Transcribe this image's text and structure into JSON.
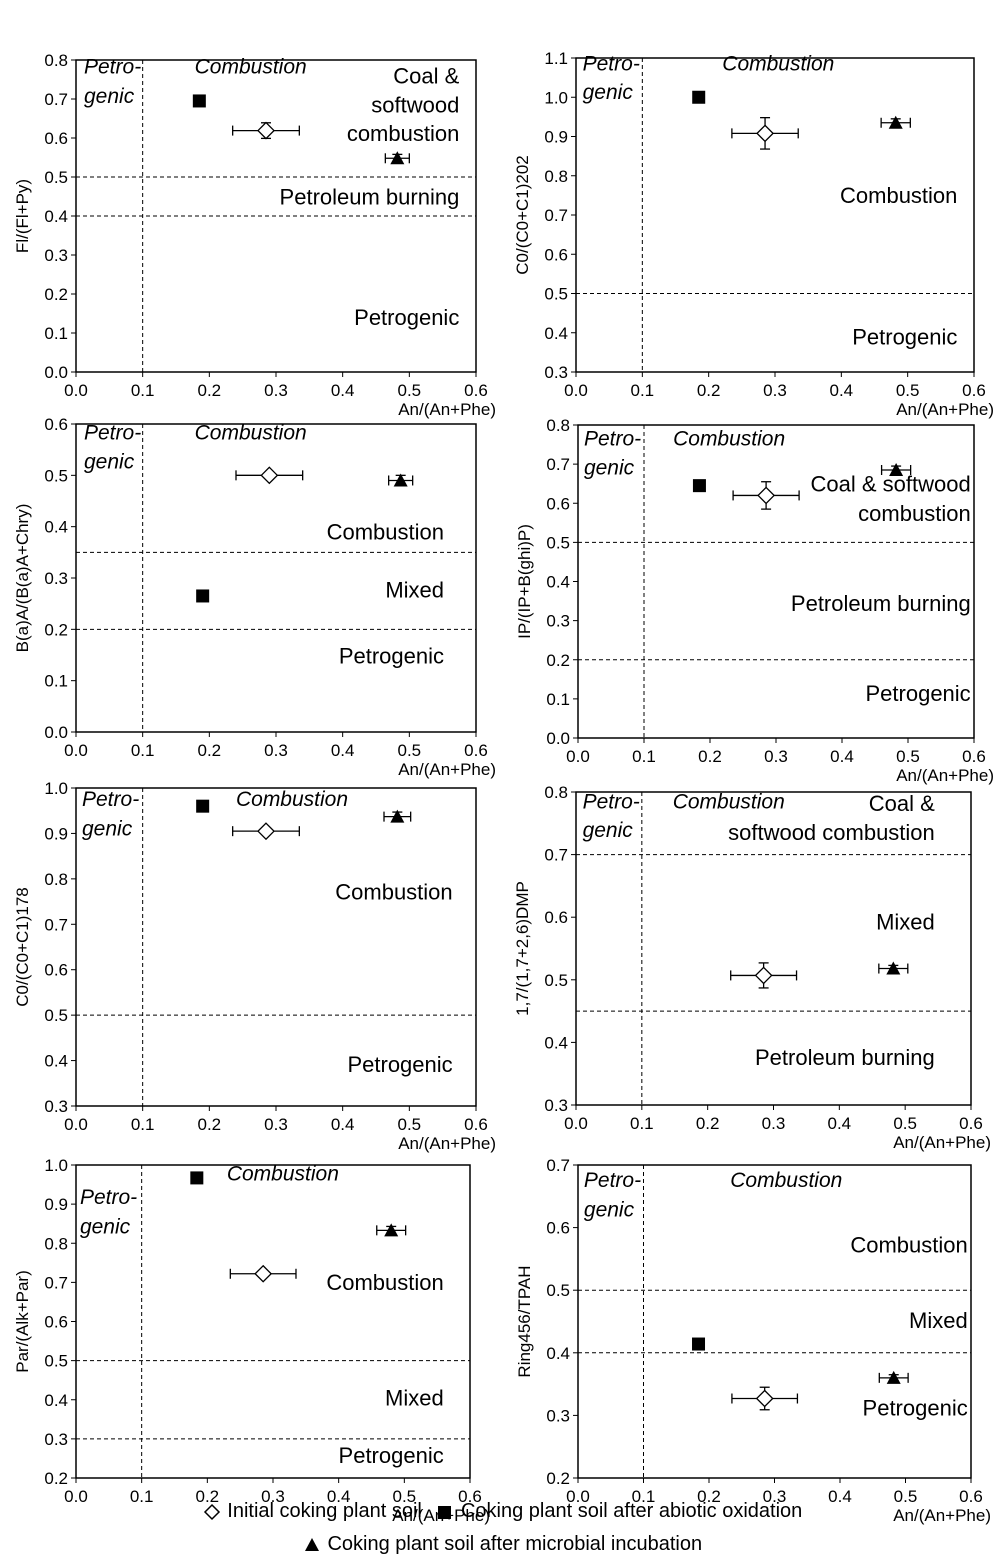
{
  "chart_data": [
    {
      "type": "scatter",
      "xlabel": "An/(An+Phe)",
      "ylabel": "Fl/(Fl+Py)",
      "xlim": [
        0,
        0.6
      ],
      "ylim": [
        0,
        0.8
      ],
      "xticks": [
        "0.0",
        "0.1",
        "0.2",
        "0.3",
        "0.4",
        "0.5",
        "0.6"
      ],
      "yticks": [
        "0.0",
        "0.1",
        "0.2",
        "0.3",
        "0.4",
        "0.5",
        "0.6",
        "0.7",
        "0.8"
      ],
      "vlines": [
        0.1
      ],
      "hlines": [
        0.5,
        0.4
      ],
      "points": [
        {
          "series": "initial",
          "x": 0.285,
          "y": 0.619,
          "xerr": 0.05,
          "yerr": 0.02
        },
        {
          "series": "abiotic",
          "x": 0.185,
          "y": 0.695,
          "xerr": 0,
          "yerr": 0
        },
        {
          "series": "microbial",
          "x": 0.482,
          "y": 0.548,
          "xerr": 0.018,
          "yerr": 0.01
        }
      ],
      "annotations": [
        {
          "text": "Petro-",
          "x": 0.012,
          "y": 0.765,
          "anchor": "start",
          "italic": true
        },
        {
          "text": "genic",
          "x": 0.012,
          "y": 0.69,
          "anchor": "start",
          "italic": true
        },
        {
          "text": "Combustion",
          "x": 0.262,
          "y": 0.765,
          "anchor": "middle",
          "italic": true
        },
        {
          "text": "Coal &",
          "x": 0.575,
          "y": 0.74,
          "anchor": "end",
          "italic": false
        },
        {
          "text": "softwood",
          "x": 0.575,
          "y": 0.666,
          "anchor": "end",
          "italic": false
        },
        {
          "text": "combustion",
          "x": 0.575,
          "y": 0.592,
          "anchor": "end",
          "italic": false
        },
        {
          "text": "Petroleum burning",
          "x": 0.575,
          "y": 0.43,
          "anchor": "end",
          "italic": false
        },
        {
          "text": "Petrogenic",
          "x": 0.575,
          "y": 0.12,
          "anchor": "end",
          "italic": false
        }
      ]
    },
    {
      "type": "scatter",
      "xlabel": "An/(An+Phe)",
      "ylabel": "C0/(C0+C1)202",
      "xlim": [
        0,
        0.6
      ],
      "ylim": [
        0.3,
        1.1
      ],
      "xticks": [
        "0.0",
        "0.1",
        "0.2",
        "0.3",
        "0.4",
        "0.5",
        "0.6"
      ],
      "yticks": [
        "0.3",
        "0.4",
        "0.5",
        "0.6",
        "0.7",
        "0.8",
        "0.9",
        "1.0",
        "1.1"
      ],
      "vlines": [
        0.1
      ],
      "hlines": [
        0.5
      ],
      "points": [
        {
          "series": "initial",
          "x": 0.285,
          "y": 0.908,
          "xerr": 0.05,
          "yerr": 0.04
        },
        {
          "series": "abiotic",
          "x": 0.185,
          "y": 1.0,
          "xerr": 0,
          "yerr": 0
        },
        {
          "series": "microbial",
          "x": 0.482,
          "y": 0.935,
          "xerr": 0.022,
          "yerr": 0.01
        }
      ],
      "annotations": [
        {
          "text": "Petro-",
          "x": 0.01,
          "y": 1.068,
          "anchor": "start",
          "italic": true
        },
        {
          "text": "genic",
          "x": 0.01,
          "y": 0.995,
          "anchor": "start",
          "italic": true
        },
        {
          "text": "Combustion",
          "x": 0.305,
          "y": 1.068,
          "anchor": "middle",
          "italic": true
        },
        {
          "text": "Combustion",
          "x": 0.575,
          "y": 0.73,
          "anchor": "end",
          "italic": false
        },
        {
          "text": "Petrogenic",
          "x": 0.575,
          "y": 0.37,
          "anchor": "end",
          "italic": false
        }
      ]
    },
    {
      "type": "scatter",
      "xlabel": "An/(An+Phe)",
      "ylabel": "B(a)A/(B(a)A+Chry)",
      "xlim": [
        0,
        0.6
      ],
      "ylim": [
        0,
        0.6
      ],
      "xticks": [
        "0.0",
        "0.1",
        "0.2",
        "0.3",
        "0.4",
        "0.5",
        "0.6"
      ],
      "yticks": [
        "0.0",
        "0.1",
        "0.2",
        "0.3",
        "0.4",
        "0.5",
        "0.6"
      ],
      "vlines": [
        0.1
      ],
      "hlines": [
        0.35,
        0.2
      ],
      "points": [
        {
          "series": "initial",
          "x": 0.29,
          "y": 0.5,
          "xerr": 0.05,
          "yerr": 0
        },
        {
          "series": "abiotic",
          "x": 0.19,
          "y": 0.265,
          "xerr": 0,
          "yerr": 0
        },
        {
          "series": "microbial",
          "x": 0.487,
          "y": 0.49,
          "xerr": 0.018,
          "yerr": 0.01
        }
      ],
      "annotations": [
        {
          "text": "Petro-",
          "x": 0.012,
          "y": 0.57,
          "anchor": "start",
          "italic": true
        },
        {
          "text": "genic",
          "x": 0.012,
          "y": 0.513,
          "anchor": "start",
          "italic": true
        },
        {
          "text": "Combustion",
          "x": 0.262,
          "y": 0.57,
          "anchor": "middle",
          "italic": true
        },
        {
          "text": "Combustion",
          "x": 0.552,
          "y": 0.375,
          "anchor": "end",
          "italic": false
        },
        {
          "text": "Mixed",
          "x": 0.552,
          "y": 0.262,
          "anchor": "end",
          "italic": false
        },
        {
          "text": "Petrogenic",
          "x": 0.552,
          "y": 0.133,
          "anchor": "end",
          "italic": false
        }
      ]
    },
    {
      "type": "scatter",
      "xlabel": "An/(An+Phe)",
      "ylabel": "IP/(IP+B(ghi)P)",
      "xlim": [
        0,
        0.6
      ],
      "ylim": [
        0,
        0.8
      ],
      "xticks": [
        "0.0",
        "0.1",
        "0.2",
        "0.3",
        "0.4",
        "0.5",
        "0.6"
      ],
      "yticks": [
        "0.0",
        "0.1",
        "0.2",
        "0.3",
        "0.4",
        "0.5",
        "0.6",
        "0.7",
        "0.8"
      ],
      "vlines": [
        0.1
      ],
      "hlines": [
        0.5,
        0.2
      ],
      "points": [
        {
          "series": "initial",
          "x": 0.285,
          "y": 0.62,
          "xerr": 0.05,
          "yerr": 0.035
        },
        {
          "series": "abiotic",
          "x": 0.184,
          "y": 0.645,
          "xerr": 0,
          "yerr": 0
        },
        {
          "series": "microbial",
          "x": 0.482,
          "y": 0.685,
          "xerr": 0.022,
          "yerr": 0.01
        }
      ],
      "annotations": [
        {
          "text": "Petro-",
          "x": 0.009,
          "y": 0.747,
          "anchor": "start",
          "italic": true
        },
        {
          "text": "genic",
          "x": 0.009,
          "y": 0.673,
          "anchor": "start",
          "italic": true
        },
        {
          "text": "Combustion",
          "x": 0.229,
          "y": 0.747,
          "anchor": "middle",
          "italic": true
        },
        {
          "text": "Coal & softwood",
          "x": 0.595,
          "y": 0.63,
          "anchor": "end",
          "italic": false
        },
        {
          "text": "combustion",
          "x": 0.595,
          "y": 0.555,
          "anchor": "end",
          "italic": false
        },
        {
          "text": "Petroleum burning",
          "x": 0.595,
          "y": 0.325,
          "anchor": "end",
          "italic": false
        },
        {
          "text": "Petrogenic",
          "x": 0.595,
          "y": 0.095,
          "anchor": "end",
          "italic": false
        }
      ]
    },
    {
      "type": "scatter",
      "xlabel": "An/(An+Phe)",
      "ylabel": "C0/(C0+C1)178",
      "xlim": [
        0,
        0.6
      ],
      "ylim": [
        0.3,
        1.0
      ],
      "xticks": [
        "0.0",
        "0.1",
        "0.2",
        "0.3",
        "0.4",
        "0.5",
        "0.6"
      ],
      "yticks": [
        "0.3",
        "0.4",
        "0.5",
        "0.6",
        "0.7",
        "0.8",
        "0.9",
        "1.0"
      ],
      "vlines": [
        0.1
      ],
      "hlines": [
        0.5
      ],
      "points": [
        {
          "series": "initial",
          "x": 0.285,
          "y": 0.905,
          "xerr": 0.05,
          "yerr": 0
        },
        {
          "series": "abiotic",
          "x": 0.19,
          "y": 0.96,
          "xerr": 0,
          "yerr": 0
        },
        {
          "series": "microbial",
          "x": 0.482,
          "y": 0.937,
          "xerr": 0.02,
          "yerr": 0.01
        }
      ],
      "annotations": [
        {
          "text": "Petro-",
          "x": 0.009,
          "y": 0.96,
          "anchor": "start",
          "italic": true
        },
        {
          "text": "genic",
          "x": 0.009,
          "y": 0.895,
          "anchor": "start",
          "italic": true
        },
        {
          "text": "Combustion",
          "x": 0.324,
          "y": 0.96,
          "anchor": "middle",
          "italic": true
        },
        {
          "text": "Combustion",
          "x": 0.565,
          "y": 0.755,
          "anchor": "end",
          "italic": false
        },
        {
          "text": "Petrogenic",
          "x": 0.565,
          "y": 0.375,
          "anchor": "end",
          "italic": false
        }
      ]
    },
    {
      "type": "scatter",
      "xlabel": "An/(An+Phe)",
      "ylabel": "1,7/(1,7+2,6)DMP",
      "xlim": [
        0,
        0.6
      ],
      "ylim": [
        0.3,
        0.8
      ],
      "xticks": [
        "0.0",
        "0.1",
        "0.2",
        "0.3",
        "0.4",
        "0.5",
        "0.6"
      ],
      "yticks": [
        "0.3",
        "0.4",
        "0.5",
        "0.6",
        "0.7",
        "0.8"
      ],
      "vlines": [
        0.1
      ],
      "hlines": [
        0.7,
        0.45
      ],
      "points": [
        {
          "series": "initial",
          "x": 0.285,
          "y": 0.507,
          "xerr": 0.05,
          "yerr": 0.02
        },
        {
          "series": "microbial",
          "x": 0.482,
          "y": 0.518,
          "xerr": 0.022,
          "yerr": 0.005
        }
      ],
      "annotations": [
        {
          "text": "Petro-",
          "x": 0.01,
          "y": 0.774,
          "anchor": "start",
          "italic": true
        },
        {
          "text": "genic",
          "x": 0.01,
          "y": 0.728,
          "anchor": "start",
          "italic": true
        },
        {
          "text": "Combustion",
          "x": 0.232,
          "y": 0.774,
          "anchor": "middle",
          "italic": true
        },
        {
          "text": "Coal &",
          "x": 0.545,
          "y": 0.77,
          "anchor": "end",
          "italic": false
        },
        {
          "text": "softwood combustion",
          "x": 0.545,
          "y": 0.723,
          "anchor": "end",
          "italic": false
        },
        {
          "text": "Petroleum burning",
          "x": 0.545,
          "y": 0.364,
          "anchor": "end",
          "italic": false
        },
        {
          "text": "Mixed",
          "x": 0.545,
          "y": 0.58,
          "anchor": "end",
          "italic": false
        }
      ]
    },
    {
      "type": "scatter",
      "xlabel": "An/(An+Phe)",
      "ylabel": "Par/(Alk+Par)",
      "xlim": [
        0,
        0.6
      ],
      "ylim": [
        0.2,
        1.0
      ],
      "xticks": [
        "0.0",
        "0.1",
        "0.2",
        "0.3",
        "0.4",
        "0.5",
        "0.6"
      ],
      "yticks": [
        "0.2",
        "0.3",
        "0.4",
        "0.5",
        "0.6",
        "0.7",
        "0.8",
        "0.9",
        "1.0"
      ],
      "vlines": [
        0.1
      ],
      "hlines": [
        0.5,
        0.3
      ],
      "points": [
        {
          "series": "initial",
          "x": 0.285,
          "y": 0.722,
          "xerr": 0.05,
          "yerr": 0
        },
        {
          "series": "abiotic",
          "x": 0.184,
          "y": 0.967,
          "xerr": 0,
          "yerr": 0
        },
        {
          "series": "microbial",
          "x": 0.48,
          "y": 0.833,
          "xerr": 0.022,
          "yerr": 0.01
        }
      ],
      "annotations": [
        {
          "text": "Petro-",
          "x": 0.006,
          "y": 0.9,
          "anchor": "start",
          "italic": true
        },
        {
          "text": "genic",
          "x": 0.006,
          "y": 0.825,
          "anchor": "start",
          "italic": true
        },
        {
          "text": "Combustion",
          "x": 0.315,
          "y": 0.96,
          "anchor": "middle",
          "italic": true
        },
        {
          "text": "Combustion",
          "x": 0.56,
          "y": 0.68,
          "anchor": "end",
          "italic": false
        },
        {
          "text": "Mixed",
          "x": 0.56,
          "y": 0.385,
          "anchor": "end",
          "italic": false
        },
        {
          "text": "Petrogenic",
          "x": 0.56,
          "y": 0.238,
          "anchor": "end",
          "italic": false
        }
      ]
    },
    {
      "type": "scatter",
      "xlabel": "An/(An+Phe)",
      "ylabel": "Ring456/TPAH",
      "xlim": [
        0,
        0.6
      ],
      "ylim": [
        0.2,
        0.7
      ],
      "xticks": [
        "0.0",
        "0.1",
        "0.2",
        "0.3",
        "0.4",
        "0.5",
        "0.6"
      ],
      "yticks": [
        "0.2",
        "0.3",
        "0.4",
        "0.5",
        "0.6",
        "0.7"
      ],
      "vlines": [
        0.1
      ],
      "hlines": [
        0.5,
        0.4
      ],
      "points": [
        {
          "series": "initial",
          "x": 0.285,
          "y": 0.327,
          "xerr": 0.05,
          "yerr": 0.018
        },
        {
          "series": "abiotic",
          "x": 0.184,
          "y": 0.414,
          "xerr": 0,
          "yerr": 0
        },
        {
          "series": "microbial",
          "x": 0.482,
          "y": 0.36,
          "xerr": 0.022,
          "yerr": 0.005
        }
      ],
      "annotations": [
        {
          "text": "Petro-",
          "x": 0.009,
          "y": 0.665,
          "anchor": "start",
          "italic": true
        },
        {
          "text": "genic",
          "x": 0.009,
          "y": 0.618,
          "anchor": "start",
          "italic": true
        },
        {
          "text": "Combustion",
          "x": 0.318,
          "y": 0.665,
          "anchor": "middle",
          "italic": true
        },
        {
          "text": "Combustion",
          "x": 0.595,
          "y": 0.56,
          "anchor": "end",
          "italic": false
        },
        {
          "text": "Mixed",
          "x": 0.595,
          "y": 0.44,
          "anchor": "end",
          "italic": false
        },
        {
          "text": "Petrogenic",
          "x": 0.595,
          "y": 0.3,
          "anchor": "end",
          "italic": false
        }
      ]
    }
  ],
  "legend": {
    "initial": "Initial coking plant soil",
    "abiotic": "Coking plant soil after abiotic oxidation",
    "microbial": "Coking plant soil after microbial incubation"
  }
}
